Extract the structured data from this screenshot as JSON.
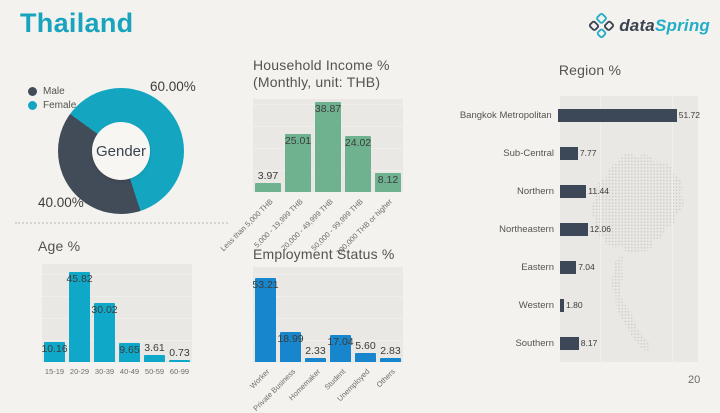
{
  "page": {
    "title": "Thailand",
    "page_number": "20"
  },
  "logo": {
    "word_dark": "data",
    "word_accent": "Spring"
  },
  "colors": {
    "title_teal": "#17A4BC",
    "donut_female": "#14A6C1",
    "donut_male": "#424B58",
    "income_green": "#6FB290",
    "age_teal": "#10A8C8",
    "employment_blue": "#1786CC",
    "region_slate": "#3C4757",
    "plot_background": "#E9E8E5",
    "page_background": "#F3F2EF"
  },
  "chart_data": [
    {
      "id": "gender",
      "type": "pie",
      "title": "Gender",
      "labels": [
        "Female",
        "Male"
      ],
      "values": [
        60.0,
        40.0
      ],
      "colors": [
        "#14A6C1",
        "#424B58"
      ],
      "legend": [
        {
          "label": "Male",
          "color": "#424B58"
        },
        {
          "label": "Female",
          "color": "#14A6C1"
        }
      ],
      "start_angle": -54,
      "donut": true
    },
    {
      "id": "income",
      "type": "bar",
      "title_line1": "Household Income %",
      "title_line2": "(Monthly, unit: THB)",
      "categories": [
        "Less than 5,000 THB",
        "5,000 - 19,999 THB",
        "20,000 - 49,999 THB",
        "50,000 - 99,999 THB",
        "100,000 THB or higher"
      ],
      "values": [
        3.97,
        25.01,
        38.87,
        24.02,
        8.12
      ],
      "ylim": [
        0,
        40
      ],
      "color": "#6FB290",
      "rotated_labels": true
    },
    {
      "id": "age",
      "type": "bar",
      "title": "Age %",
      "categories": [
        "15-19",
        "20-29",
        "30-39",
        "40-49",
        "50-59",
        "60-99"
      ],
      "values": [
        10.16,
        45.82,
        30.02,
        9.65,
        3.61,
        0.73
      ],
      "ylim": [
        0,
        50
      ],
      "color": "#10A8C8",
      "rotated_labels": false
    },
    {
      "id": "employment",
      "type": "bar",
      "title": "Employment Status %",
      "categories": [
        "Worker",
        "Private Business",
        "Homemaker",
        "Student",
        "Unemployed",
        "Others"
      ],
      "values": [
        53.21,
        18.99,
        2.33,
        17.04,
        5.6,
        2.83
      ],
      "ylim": [
        0,
        60
      ],
      "color": "#1786CC",
      "rotated_labels": true
    },
    {
      "id": "region",
      "type": "horizontal-bar",
      "title": "Region %",
      "categories": [
        "Bangkok Metropolitan",
        "Sub-Central",
        "Northern",
        "Northeastern",
        "Eastern",
        "Western",
        "Southern"
      ],
      "values": [
        51.72,
        7.77,
        11.44,
        12.06,
        7.04,
        1.8,
        8.17
      ],
      "xlim": [
        0,
        60
      ],
      "color": "#3C4757"
    }
  ]
}
